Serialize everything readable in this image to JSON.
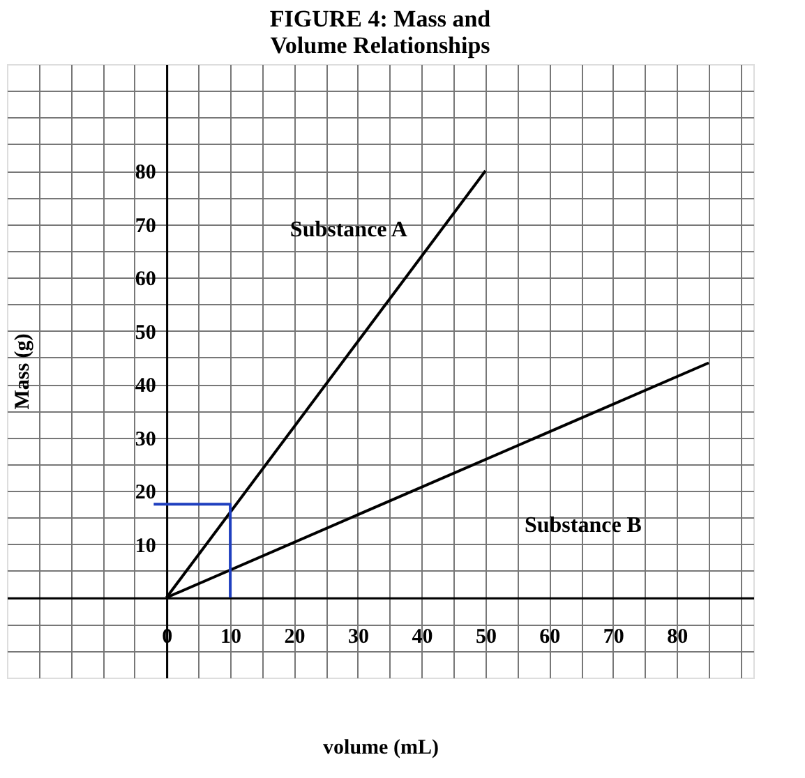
{
  "chart_data": {
    "type": "line",
    "title": "FIGURE 4: Mass and\nVolume Relationships",
    "xlabel": "volume (mL)",
    "ylabel": "Mass (g)",
    "series": [
      {
        "name": "Substance A",
        "color": "#000000",
        "x": [
          0,
          50
        ],
        "values": [
          0,
          80
        ]
      },
      {
        "name": "Substance B",
        "color": "#000000",
        "x": [
          0,
          85
        ],
        "values": [
          0,
          44
        ]
      },
      {
        "color": "#1f3fbf",
        "x": [
          10,
          10,
          -2
        ],
        "values": [
          0,
          17.5,
          17.5
        ]
      }
    ],
    "xlim": [
      -25,
      92
    ],
    "ylim": [
      -15,
      100
    ],
    "xticks": [
      {
        "value": -20,
        "label": null
      },
      {
        "value": -15,
        "label": null
      },
      {
        "value": -10,
        "label": null
      },
      {
        "value": -5,
        "label": null
      },
      0,
      {
        "value": 5,
        "label": null
      },
      10,
      {
        "value": 15,
        "label": null
      },
      20,
      {
        "value": 25,
        "label": null
      },
      30,
      {
        "value": 35,
        "label": null
      },
      40,
      {
        "value": 45,
        "label": null
      },
      50,
      {
        "value": 55,
        "label": null
      },
      60,
      {
        "value": 65,
        "label": null
      },
      70,
      {
        "value": 75,
        "label": null
      },
      80,
      {
        "value": 85,
        "label": null
      },
      {
        "value": 90,
        "label": null
      }
    ],
    "yticks": [
      {
        "value": -10,
        "label": null
      },
      {
        "value": -5,
        "label": null
      },
      {
        "value": 0,
        "label": null
      },
      {
        "value": 5,
        "label": null
      },
      10,
      {
        "value": 15,
        "label": null
      },
      20,
      {
        "value": 25,
        "label": null
      },
      30,
      {
        "value": 35,
        "label": null
      },
      40,
      {
        "value": 45,
        "label": null
      },
      50,
      {
        "value": 55,
        "label": null
      },
      60,
      {
        "value": 65,
        "label": null
      },
      70,
      {
        "value": 75,
        "label": null
      },
      80,
      {
        "value": 85,
        "label": null
      },
      {
        "value": 90,
        "label": null
      },
      {
        "value": 95,
        "label": null
      }
    ],
    "grid": true,
    "marker": "none",
    "line_style": "solid"
  }
}
